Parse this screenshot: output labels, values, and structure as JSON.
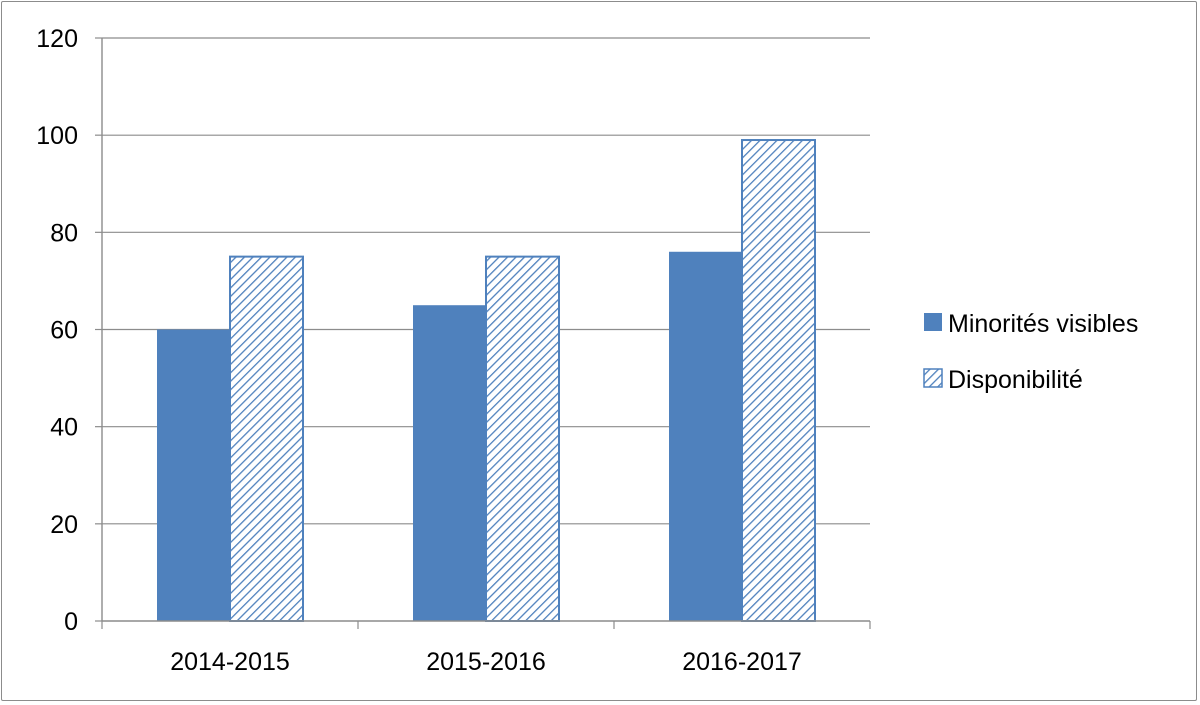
{
  "chart_data": {
    "type": "bar",
    "title": "",
    "xlabel": "",
    "ylabel": "",
    "categories": [
      "2014-2015",
      "2015-2016",
      "2016-2017"
    ],
    "series": [
      {
        "name": "Minorités visibles",
        "values": [
          60,
          65,
          76
        ],
        "color": "#4f81bd",
        "fill": "solid"
      },
      {
        "name": "Disponibilité",
        "values": [
          75,
          75,
          99
        ],
        "color": "#4f81bd",
        "fill": "diagonal-hatch"
      }
    ],
    "ylim": [
      0,
      120
    ],
    "yticks": [
      "0",
      "20",
      "40",
      "60",
      "80",
      "100",
      "120"
    ],
    "grid": true,
    "legend_position": "right"
  }
}
